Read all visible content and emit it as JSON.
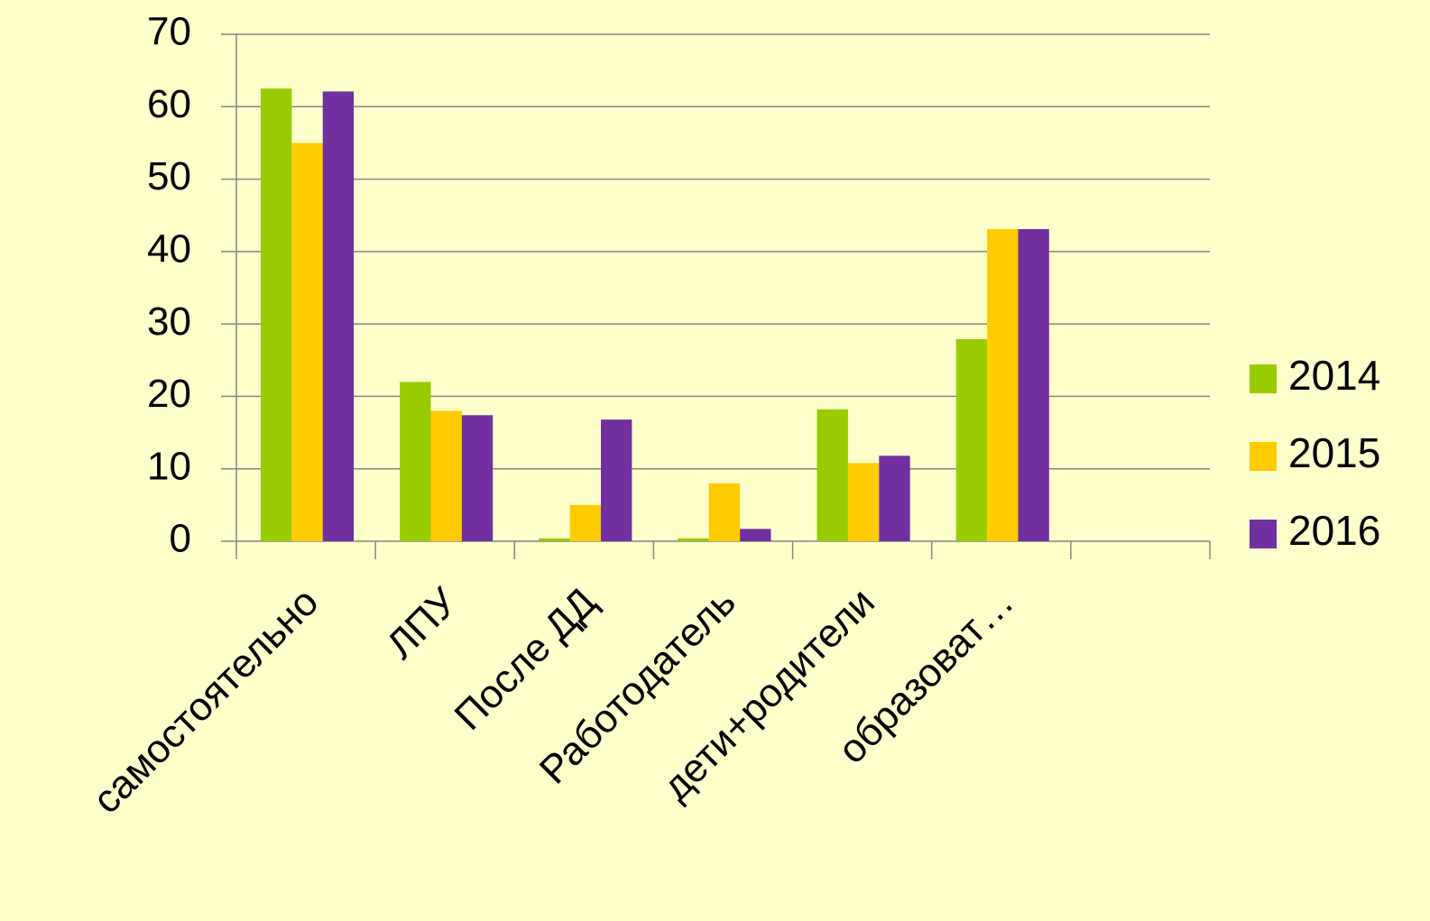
{
  "chart_data": {
    "type": "bar",
    "categories": [
      "самостоятельно",
      "ЛПУ",
      "После ДД",
      "Работодатель",
      "дети+родители",
      "образоват…",
      null
    ],
    "series": [
      {
        "name": "2014",
        "color": "#99cc00",
        "values": [
          62.5,
          22,
          0.4,
          0.4,
          18.2,
          27.9,
          null
        ]
      },
      {
        "name": "2015",
        "color": "#ffcc00",
        "values": [
          55,
          18,
          5,
          8,
          10.8,
          43.1,
          null
        ]
      },
      {
        "name": "2016",
        "color": "#7030a0",
        "values": [
          62.1,
          17.4,
          16.8,
          1.7,
          11.8,
          43.1,
          null
        ]
      }
    ],
    "ylim": [
      0,
      70
    ],
    "yticks": [
      0,
      10,
      20,
      30,
      40,
      50,
      60,
      70
    ],
    "grid": true,
    "legend": "right"
  }
}
